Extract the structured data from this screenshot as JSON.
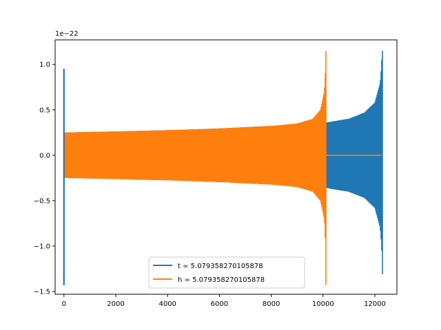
{
  "chart_data": {
    "type": "line",
    "title": "",
    "xlabel": "",
    "ylabel": "",
    "y_offset_label": "1e−22",
    "xlim": [
      -340,
      12850
    ],
    "ylim": [
      -1.53,
      1.27
    ],
    "xticks": [
      0,
      2000,
      4000,
      6000,
      8000,
      10000,
      12000
    ],
    "xtick_labels": [
      "0",
      "2000",
      "4000",
      "6000",
      "8000",
      "10000",
      "12000"
    ],
    "yticks": [
      1.0,
      0.5,
      0.0,
      -0.5,
      -1.0,
      -1.5
    ],
    "ytick_labels": [
      "1.0",
      "0.5",
      "0.0",
      "−0.5",
      "−1.0",
      "−1.5"
    ],
    "grid": false,
    "legend_position": "lower-center",
    "series": [
      {
        "name": "t = 5.079358270105878",
        "color": "#1f77b4",
        "kind": "chirp-envelope",
        "spike_x": 0,
        "spike_max": 0.95,
        "spike_min": -1.43,
        "x_start": 0,
        "x_end": 12280,
        "envelope": [
          [
            0,
            0.25
          ],
          [
            2000,
            0.262
          ],
          [
            4000,
            0.276
          ],
          [
            6000,
            0.295
          ],
          [
            8000,
            0.323
          ],
          [
            10000,
            0.35
          ],
          [
            10150,
            0.362
          ],
          [
            11000,
            0.402
          ],
          [
            11600,
            0.47
          ],
          [
            12000,
            0.58
          ],
          [
            12200,
            0.79
          ],
          [
            12260,
            1.0
          ],
          [
            12275,
            1.15
          ]
        ],
        "envelope_min_tail": -1.31
      },
      {
        "name": "h = 5.079358270105878",
        "color": "#ff7f0e",
        "kind": "chirp-envelope",
        "x_start": 0,
        "x_end": 10110,
        "envelope": [
          [
            0,
            0.25
          ],
          [
            2000,
            0.262
          ],
          [
            4000,
            0.276
          ],
          [
            6000,
            0.295
          ],
          [
            8000,
            0.323
          ],
          [
            9000,
            0.35
          ],
          [
            9600,
            0.4
          ],
          [
            9900,
            0.5
          ],
          [
            10050,
            0.7
          ],
          [
            10100,
            1.0
          ],
          [
            10110,
            1.15
          ]
        ],
        "envelope_min_tail": -1.43,
        "flat_after": [
          10110,
          12280
        ]
      }
    ]
  }
}
